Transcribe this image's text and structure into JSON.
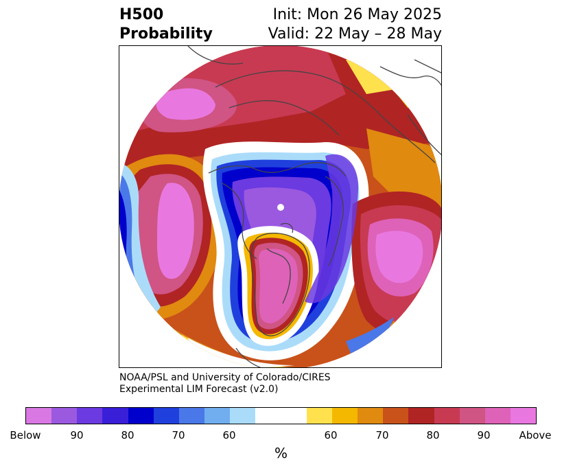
{
  "title": {
    "left": [
      "H500",
      "Probability"
    ],
    "right": [
      "Init: Mon 26 May 2025",
      "Valid: 22 May – 28 May"
    ]
  },
  "credit": [
    "NOAA/PSL and University of Colorado/CIRES",
    "Experimental LIM Forecast (v2.0)"
  ],
  "colorbar": {
    "colors": [
      "#d978e3",
      "#9b59e0",
      "#6b3ae0",
      "#3a1fd8",
      "#0000cc",
      "#2040dd",
      "#4a78e8",
      "#70aef0",
      "#aadcfa",
      "#ffffff",
      "#ffffff",
      "#ffe14d",
      "#f5b800",
      "#e08a10",
      "#c8521a",
      "#b02424",
      "#c83a52",
      "#d05484",
      "#de62b8",
      "#e878e0"
    ],
    "tick_labels": [
      "Below",
      "90",
      "80",
      "70",
      "60",
      "60",
      "70",
      "80",
      "90",
      "Above"
    ],
    "unit": "%"
  }
}
